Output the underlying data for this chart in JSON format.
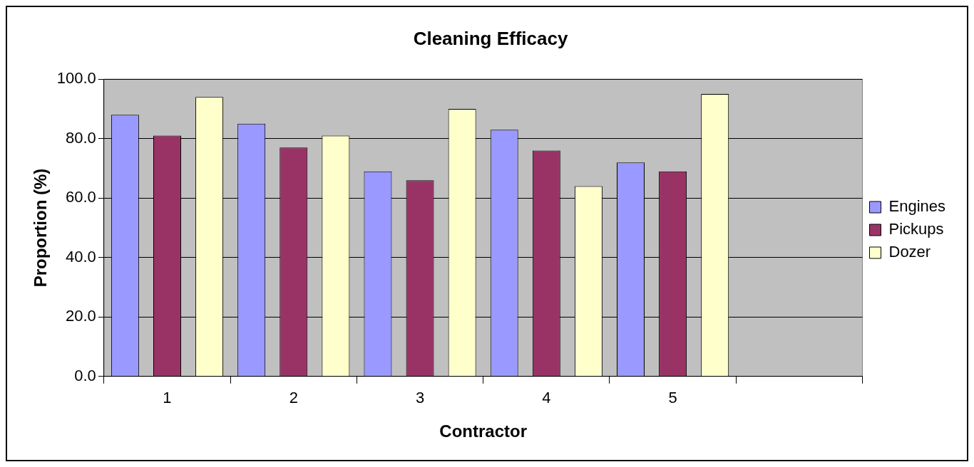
{
  "chart_data": {
    "type": "bar",
    "title": "Cleaning Efficacy",
    "xlabel": "Contractor",
    "ylabel": "Proportion (%)",
    "categories": [
      "1",
      "2",
      "3",
      "4",
      "5",
      null
    ],
    "series": [
      {
        "name": "Engines",
        "color": "#9999ff",
        "values": [
          88,
          85,
          69,
          83,
          72,
          null
        ]
      },
      {
        "name": "Pickups",
        "color": "#993366",
        "values": [
          81,
          77,
          66,
          76,
          69,
          null
        ]
      },
      {
        "name": "Dozer",
        "color": "#ffffcc",
        "values": [
          94,
          81,
          90,
          64,
          95,
          null
        ]
      }
    ],
    "ylim": [
      0,
      100
    ],
    "yticks": [
      {
        "value": 0,
        "label": "0.0"
      },
      {
        "value": 20,
        "label": "20.0"
      },
      {
        "value": 40,
        "label": "40.0"
      },
      {
        "value": 60,
        "label": "60.0"
      },
      {
        "value": 80,
        "label": "80.0"
      },
      {
        "value": 100,
        "label": "100.0"
      }
    ],
    "grid": "y",
    "legend": "right"
  }
}
